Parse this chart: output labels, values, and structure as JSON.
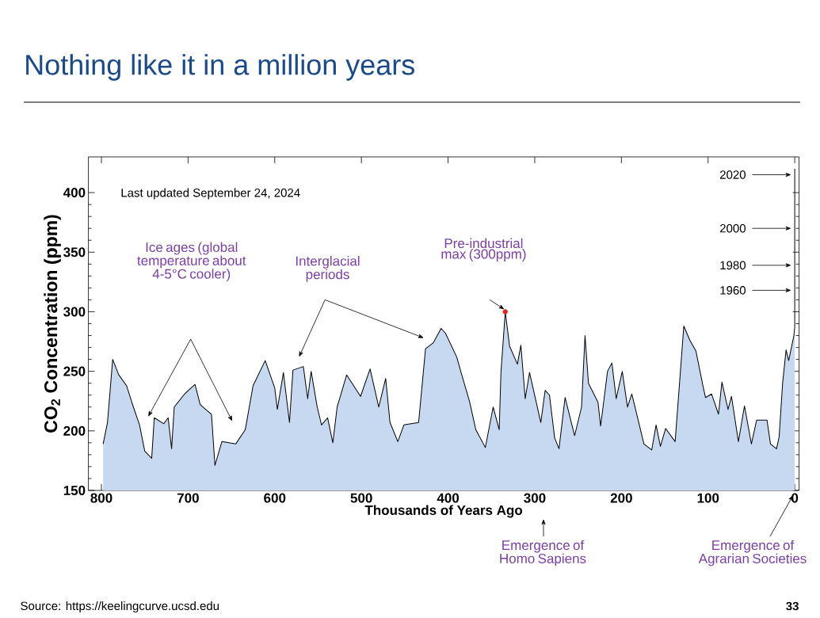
{
  "chart_data": {
    "type": "area",
    "title": "Nothing like it in a million years",
    "xlabel": "Thousands of Years Ago",
    "ylabel": "CO$_{2}$ Concentration (ppm)",
    "xlim": [
      815,
      -5
    ],
    "xticks": [
      800,
      700,
      600,
      500,
      400,
      300,
      200,
      100,
      0
    ],
    "ylim": [
      150,
      430
    ],
    "yticks": [
      150,
      200,
      250,
      300,
      350,
      400
    ],
    "grid": false,
    "series": [
      {
        "color": "#c6d9f1",
        "x": [
          798,
          793,
          787,
          780,
          771,
          764,
          756,
          750,
          742,
          739,
          728,
          723,
          719,
          716,
          704,
          692,
          686,
          673,
          669,
          661,
          645,
          634,
          625,
          611,
          600,
          597,
          590,
          583,
          579,
          567,
          562,
          558,
          551,
          546,
          539,
          533,
          528,
          517,
          501,
          490,
          480,
          472,
          467,
          458,
          451,
          434,
          426,
          417,
          408,
          403,
          390,
          385,
          375,
          368,
          357,
          348,
          341,
          339,
          334,
          329,
          320,
          316,
          311,
          306,
          293,
          288,
          283,
          277,
          272,
          265,
          254,
          246,
          242,
          238,
          227,
          224,
          216,
          211,
          206,
          199,
          193,
          188,
          174,
          165,
          160,
          155,
          149,
          138,
          128,
          121,
          114,
          106,
          103,
          96,
          88,
          84,
          77,
          73,
          65,
          58,
          50,
          44,
          32,
          28,
          21,
          18,
          14,
          10,
          7,
          1,
          0,
          0
        ],
        "values": [
          189,
          207,
          260,
          247,
          238,
          222,
          205,
          183,
          177,
          211,
          206,
          211,
          185,
          220,
          231,
          239,
          222,
          214,
          171,
          191,
          189,
          201,
          238,
          259,
          236,
          218,
          249,
          207,
          251,
          254,
          227,
          250,
          220,
          205,
          211,
          190,
          220,
          247,
          229,
          252,
          220,
          244,
          207,
          191,
          205,
          207,
          269,
          274,
          286,
          282,
          262,
          249,
          224,
          201,
          186,
          220,
          201,
          249,
          300,
          271,
          256,
          272,
          227,
          249,
          207,
          234,
          230,
          194,
          185,
          228,
          196,
          220,
          280,
          240,
          224,
          204,
          250,
          257,
          227,
          250,
          220,
          231,
          189,
          184,
          205,
          187,
          202,
          191,
          288,
          276,
          267,
          238,
          228,
          231,
          214,
          241,
          218,
          229,
          191,
          221,
          189,
          209,
          209,
          189,
          185,
          195,
          240,
          268,
          259,
          280,
          287,
          420
        ]
      },
      {
        "type": "scatter",
        "color": "#e32619",
        "marker": "circle",
        "x": [
          334
        ],
        "values": [
          300
        ]
      }
    ],
    "annotations": [
      "Last updated September 24, 2024",
      "Ice ages (global temperature about 4-5°C cooler)",
      "Interglacial periods",
      "Pre-industrial max (300ppm)",
      "2020",
      "2000",
      "1980",
      "1960",
      "Emergence of Homo Sapiens",
      "Emergence of Agrarian Societies",
      "Source: https://keelingcurve.ucsd.edu",
      "33"
    ]
  }
}
